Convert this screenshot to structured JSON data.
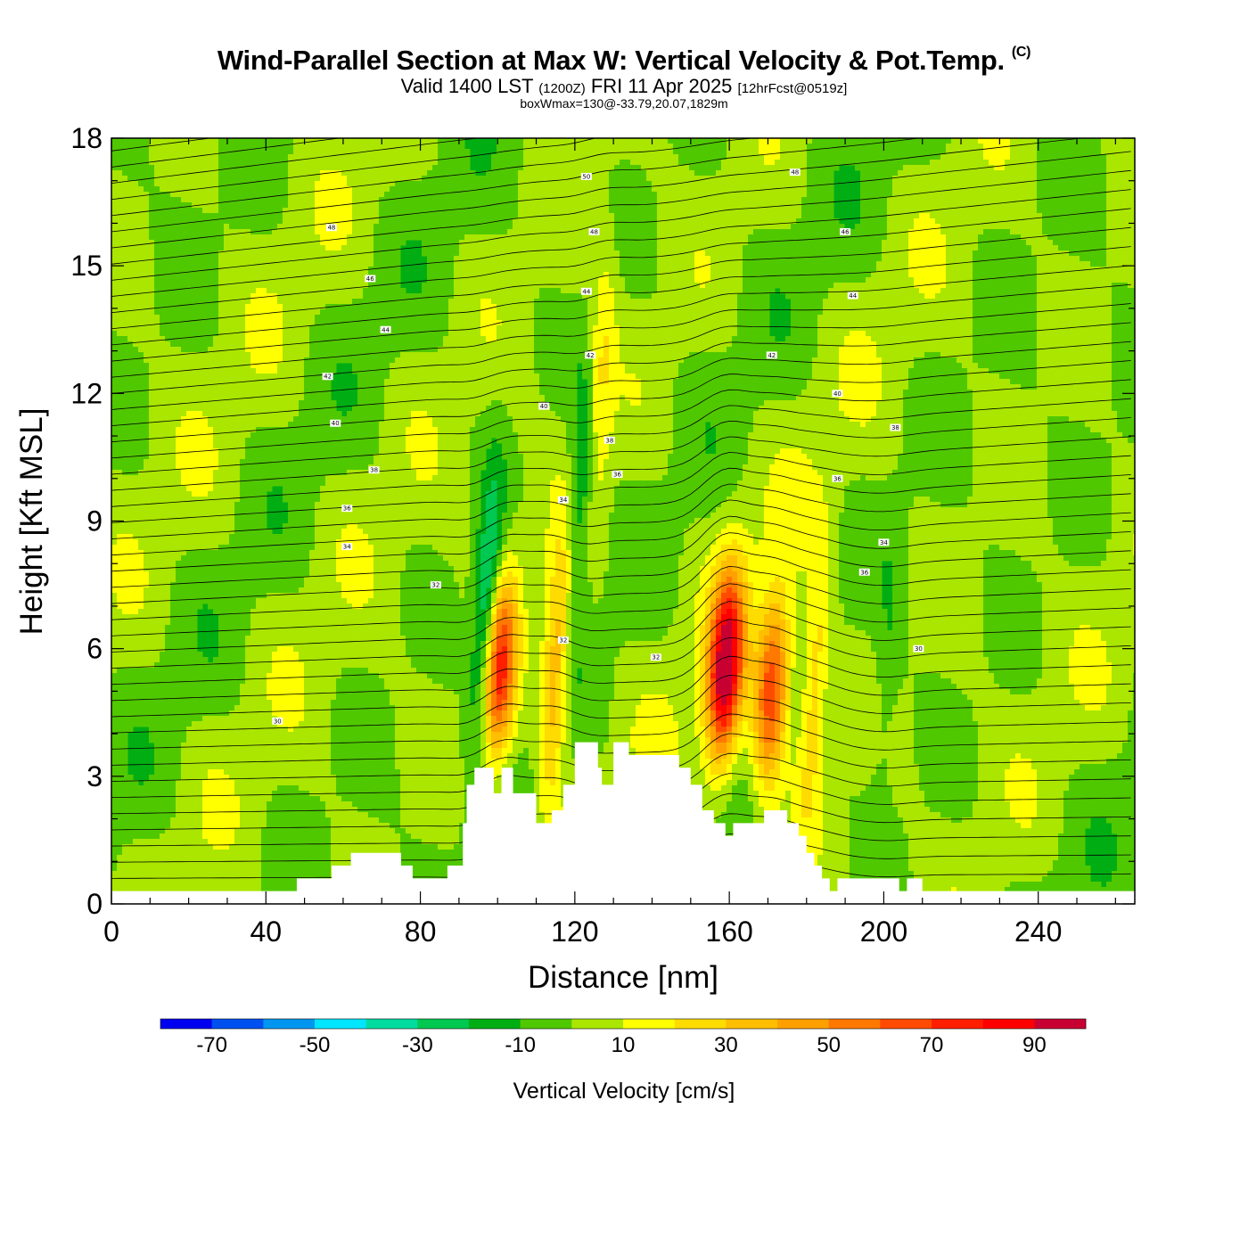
{
  "header": {
    "title": "Wind-Parallel Section at Max W: Vertical Velocity & Pot.Temp.",
    "copyright": "(C)",
    "valid_prefix": "Valid 1400 LST",
    "valid_utc": "(1200Z)",
    "valid_date": "FRI 11 Apr 2025",
    "forecast": "[12hrFcst@0519z]",
    "box_info": "boxWmax=130@-33.79,20.07,1829m"
  },
  "chart_data": {
    "type": "heatmap",
    "title": "Wind-Parallel Section at Max W: Vertical Velocity & Pot.Temp.",
    "xlabel": "Distance [nm]",
    "ylabel": "Height [Kft MSL]",
    "xlim": [
      0,
      265
    ],
    "ylim": [
      0,
      18
    ],
    "xticks": [
      0,
      40,
      80,
      120,
      160,
      200,
      240
    ],
    "yticks": [
      0,
      3,
      6,
      9,
      12,
      15,
      18
    ],
    "colorbar": {
      "label": "Vertical Velocity [cm/s]",
      "levels": [
        -80,
        -70,
        -60,
        -50,
        -40,
        -30,
        -20,
        -10,
        0,
        10,
        20,
        30,
        40,
        50,
        60,
        70,
        80,
        90,
        100
      ],
      "tick_labels": [
        "-70",
        "-50",
        "-30",
        "-10",
        "10",
        "30",
        "50",
        "70",
        "90"
      ],
      "tick_values": [
        -70,
        -50,
        -30,
        -10,
        10,
        30,
        50,
        70,
        90
      ],
      "colors": [
        "#0000f0",
        "#0050f0",
        "#0096f0",
        "#00e6ff",
        "#00dca0",
        "#00c850",
        "#00ae14",
        "#50c800",
        "#aae600",
        "#ffff00",
        "#ffdc00",
        "#ffbe00",
        "#ffa000",
        "#ff7800",
        "#ff4b00",
        "#ff1e00",
        "#ff0000",
        "#c80032"
      ],
      "band_colors_drawn": [
        "#0000f0",
        "#0050f0",
        "#0096f0",
        "#00e6ff",
        "#00dca0",
        "#00c850",
        "#00ae14",
        "#50c800",
        "#aae600",
        "#ffff00",
        "#ffdc00",
        "#ffbe00",
        "#ffa000",
        "#ff7800",
        "#ff4b00",
        "#ff1e00",
        "#ff0000",
        "#c80032"
      ]
    },
    "vertical_velocity_features": [
      {
        "x": 100,
        "height": 5.5,
        "value": 80
      },
      {
        "x": 97,
        "height": 6.5,
        "value": -50
      },
      {
        "x": 115,
        "height": 5.5,
        "value": 40
      },
      {
        "x": 122,
        "height": 10,
        "value": -30
      },
      {
        "x": 126,
        "height": 12,
        "value": 25
      },
      {
        "x": 159,
        "height": 5.5,
        "value": 100
      },
      {
        "x": 171,
        "height": 5,
        "value": 70
      },
      {
        "x": 182,
        "height": 5,
        "value": 30
      },
      {
        "x": 201,
        "height": 5.5,
        "value": -10
      }
    ],
    "theta_contour_labels": [
      {
        "x": 57,
        "y": 15.9,
        "text": "48"
      },
      {
        "x": 67,
        "y": 14.7,
        "text": "46"
      },
      {
        "x": 71,
        "y": 13.5,
        "text": "44"
      },
      {
        "x": 56,
        "y": 12.4,
        "text": "42"
      },
      {
        "x": 58,
        "y": 11.3,
        "text": "40"
      },
      {
        "x": 68,
        "y": 10.2,
        "text": "38"
      },
      {
        "x": 61,
        "y": 9.3,
        "text": "36"
      },
      {
        "x": 61,
        "y": 8.4,
        "text": "34"
      },
      {
        "x": 84,
        "y": 7.5,
        "text": "32"
      },
      {
        "x": 43,
        "y": 4.3,
        "text": "30"
      },
      {
        "x": 123,
        "y": 17.1,
        "text": "50"
      },
      {
        "x": 125,
        "y": 15.8,
        "text": "48"
      },
      {
        "x": 123,
        "y": 14.4,
        "text": "44"
      },
      {
        "x": 124,
        "y": 12.9,
        "text": "42"
      },
      {
        "x": 112,
        "y": 11.7,
        "text": "40"
      },
      {
        "x": 129,
        "y": 10.9,
        "text": "38"
      },
      {
        "x": 131,
        "y": 10.1,
        "text": "36"
      },
      {
        "x": 117,
        "y": 9.5,
        "text": "34"
      },
      {
        "x": 117,
        "y": 6.2,
        "text": "32"
      },
      {
        "x": 141,
        "y": 5.8,
        "text": "32"
      },
      {
        "x": 177,
        "y": 17.2,
        "text": "48"
      },
      {
        "x": 190,
        "y": 15.8,
        "text": "46"
      },
      {
        "x": 192,
        "y": 14.3,
        "text": "44"
      },
      {
        "x": 171,
        "y": 12.9,
        "text": "42"
      },
      {
        "x": 188,
        "y": 12.0,
        "text": "40"
      },
      {
        "x": 203,
        "y": 11.2,
        "text": "38"
      },
      {
        "x": 188,
        "y": 10.0,
        "text": "36"
      },
      {
        "x": 200,
        "y": 8.5,
        "text": "34"
      },
      {
        "x": 195,
        "y": 7.8,
        "text": "36"
      },
      {
        "x": 209,
        "y": 6.0,
        "text": "30"
      }
    ],
    "terrain_top_kft": [
      {
        "x": 0,
        "h": 0.3
      },
      {
        "x": 47,
        "h": 0.3
      },
      {
        "x": 48,
        "h": 0.6
      },
      {
        "x": 56,
        "h": 0.6
      },
      {
        "x": 57,
        "h": 0.9
      },
      {
        "x": 61,
        "h": 0.9
      },
      {
        "x": 62,
        "h": 1.2
      },
      {
        "x": 74,
        "h": 1.2
      },
      {
        "x": 75,
        "h": 0.9
      },
      {
        "x": 77,
        "h": 0.9
      },
      {
        "x": 78,
        "h": 0.6
      },
      {
        "x": 86,
        "h": 0.6
      },
      {
        "x": 87,
        "h": 0.9
      },
      {
        "x": 90,
        "h": 0.9
      },
      {
        "x": 91,
        "h": 1.9
      },
      {
        "x": 92,
        "h": 2.8
      },
      {
        "x": 93,
        "h": 2.8
      },
      {
        "x": 94,
        "h": 3.2
      },
      {
        "x": 98,
        "h": 3.2
      },
      {
        "x": 99,
        "h": 2.6
      },
      {
        "x": 100,
        "h": 2.6
      },
      {
        "x": 101,
        "h": 3.2
      },
      {
        "x": 103,
        "h": 3.2
      },
      {
        "x": 104,
        "h": 2.6
      },
      {
        "x": 109,
        "h": 2.6
      },
      {
        "x": 110,
        "h": 1.9
      },
      {
        "x": 113,
        "h": 1.9
      },
      {
        "x": 114,
        "h": 2.2
      },
      {
        "x": 116,
        "h": 2.2
      },
      {
        "x": 117,
        "h": 2.8
      },
      {
        "x": 119,
        "h": 2.8
      },
      {
        "x": 120,
        "h": 3.8
      },
      {
        "x": 125,
        "h": 3.8
      },
      {
        "x": 126,
        "h": 3.2
      },
      {
        "x": 127,
        "h": 2.8
      },
      {
        "x": 129,
        "h": 2.8
      },
      {
        "x": 130,
        "h": 3.8
      },
      {
        "x": 133,
        "h": 3.8
      },
      {
        "x": 134,
        "h": 3.5
      },
      {
        "x": 146,
        "h": 3.5
      },
      {
        "x": 147,
        "h": 3.2
      },
      {
        "x": 149,
        "h": 3.2
      },
      {
        "x": 150,
        "h": 2.8
      },
      {
        "x": 152,
        "h": 2.8
      },
      {
        "x": 153,
        "h": 2.2
      },
      {
        "x": 155,
        "h": 2.2
      },
      {
        "x": 156,
        "h": 1.9
      },
      {
        "x": 158,
        "h": 1.9
      },
      {
        "x": 159,
        "h": 1.6
      },
      {
        "x": 160,
        "h": 1.6
      },
      {
        "x": 161,
        "h": 1.9
      },
      {
        "x": 168,
        "h": 1.9
      },
      {
        "x": 169,
        "h": 2.2
      },
      {
        "x": 174,
        "h": 2.2
      },
      {
        "x": 175,
        "h": 1.9
      },
      {
        "x": 177,
        "h": 1.9
      },
      {
        "x": 178,
        "h": 1.6
      },
      {
        "x": 179,
        "h": 1.6
      },
      {
        "x": 180,
        "h": 1.2
      },
      {
        "x": 181,
        "h": 1.2
      },
      {
        "x": 182,
        "h": 0.9
      },
      {
        "x": 183,
        "h": 0.9
      },
      {
        "x": 184,
        "h": 0.6
      },
      {
        "x": 185,
        "h": 0.6
      },
      {
        "x": 186,
        "h": 0.3
      },
      {
        "x": 187,
        "h": 0.3
      },
      {
        "x": 188,
        "h": 0.6
      },
      {
        "x": 203,
        "h": 0.6
      },
      {
        "x": 204,
        "h": 0.3
      },
      {
        "x": 205,
        "h": 0.3
      },
      {
        "x": 206,
        "h": 0.6
      },
      {
        "x": 209,
        "h": 0.6
      },
      {
        "x": 210,
        "h": 0.3
      },
      {
        "x": 265,
        "h": 0.3
      }
    ]
  }
}
